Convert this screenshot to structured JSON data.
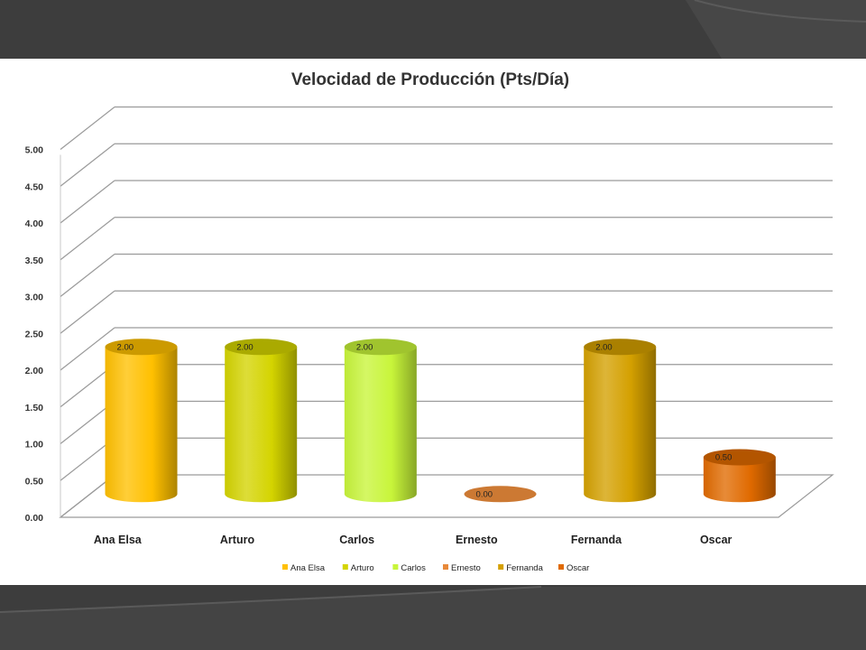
{
  "chart_data": {
    "type": "bar",
    "style": "3d-cylinder",
    "title": "Velocidad de Producción (Pts/Día)",
    "categories": [
      "Ana Elsa",
      "Arturo",
      "Carlos",
      "Ernesto",
      "Fernanda",
      "Oscar"
    ],
    "values": [
      2.0,
      2.0,
      2.0,
      0.0,
      2.0,
      0.5
    ],
    "value_labels": [
      "2.00",
      "2.00",
      "2.00",
      "0.00",
      "2.00",
      "0.50"
    ],
    "ylim": [
      0,
      5
    ],
    "yticks": [
      "0.00",
      "0.50",
      "1.00",
      "1.50",
      "2.00",
      "2.50",
      "3.00",
      "3.50",
      "4.00",
      "4.50",
      "5.00"
    ],
    "colors": [
      "#FFC000",
      "#D4D400",
      "#C8F53A",
      "#E8893A",
      "#D4A000",
      "#E06A00"
    ],
    "grid": true,
    "legend": {
      "position": "bottom",
      "entries": [
        "Ana Elsa",
        "Arturo",
        "Carlos",
        "Ernesto",
        "Fernanda",
        "Oscar"
      ]
    }
  }
}
